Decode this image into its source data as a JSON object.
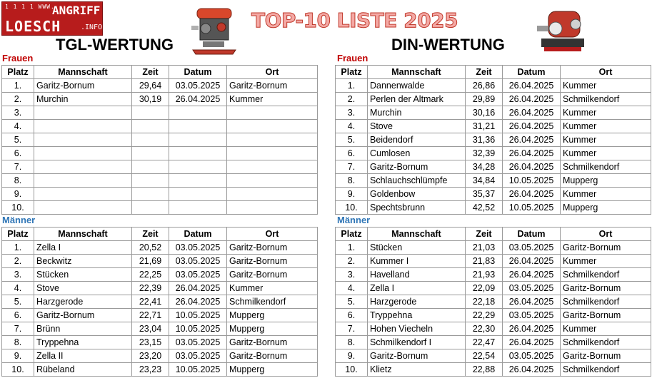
{
  "logo": {
    "top": "1 1 1 1  WWW.",
    "a": "ANGRIFF",
    "b": "LOESCH",
    "c": ".INFO"
  },
  "main_title": "TOP-10 LISTE 2025",
  "tgl": {
    "title": "TGL-WERTUNG",
    "headers": [
      "Platz",
      "Mannschaft",
      "Zeit",
      "Datum",
      "Ort"
    ],
    "frauen_label": "Frauen",
    "maenner_label": "Männer",
    "frauen": [
      [
        "1.",
        "Garitz-Bornum",
        "29,64",
        "03.05.2025",
        "Garitz-Bornum"
      ],
      [
        "2.",
        "Murchin",
        "30,19",
        "26.04.2025",
        "Kummer"
      ],
      [
        "3.",
        "",
        "",
        "",
        ""
      ],
      [
        "4.",
        "",
        "",
        "",
        ""
      ],
      [
        "5.",
        "",
        "",
        "",
        ""
      ],
      [
        "6.",
        "",
        "",
        "",
        ""
      ],
      [
        "7.",
        "",
        "",
        "",
        ""
      ],
      [
        "8.",
        "",
        "",
        "",
        ""
      ],
      [
        "9.",
        "",
        "",
        "",
        ""
      ],
      [
        "10.",
        "",
        "",
        "",
        ""
      ]
    ],
    "maenner": [
      [
        "1.",
        "Zella I",
        "20,52",
        "03.05.2025",
        "Garitz-Bornum"
      ],
      [
        "2.",
        "Beckwitz",
        "21,69",
        "03.05.2025",
        "Garitz-Bornum"
      ],
      [
        "3.",
        "Stücken",
        "22,25",
        "03.05.2025",
        "Garitz-Bornum"
      ],
      [
        "4.",
        "Stove",
        "22,39",
        "26.04.2025",
        "Kummer"
      ],
      [
        "5.",
        "Harzgerode",
        "22,41",
        "26.04.2025",
        "Schmilkendorf"
      ],
      [
        "6.",
        "Garitz-Bornum",
        "22,71",
        "10.05.2025",
        "Mupperg"
      ],
      [
        "7.",
        "Brünn",
        "23,04",
        "10.05.2025",
        "Mupperg"
      ],
      [
        "8.",
        "Tryppehna",
        "23,15",
        "03.05.2025",
        "Garitz-Bornum"
      ],
      [
        "9.",
        "Zella II",
        "23,20",
        "03.05.2025",
        "Garitz-Bornum"
      ],
      [
        "10.",
        "Rübeland",
        "23,23",
        "10.05.2025",
        "Mupperg"
      ]
    ]
  },
  "din": {
    "title": "DIN-WERTUNG",
    "headers": [
      "Platz",
      "Mannschaft",
      "Zeit",
      "Datum",
      "Ort"
    ],
    "frauen_label": "Frauen",
    "maenner_label": "Männer",
    "frauen": [
      [
        "1.",
        "Dannenwalde",
        "26,86",
        "26.04.2025",
        "Kummer"
      ],
      [
        "2.",
        "Perlen der Altmark",
        "29,89",
        "26.04.2025",
        "Schmilkendorf"
      ],
      [
        "3.",
        "Murchin",
        "30,16",
        "26.04.2025",
        "Kummer"
      ],
      [
        "4.",
        "Stove",
        "31,21",
        "26.04.2025",
        "Kummer"
      ],
      [
        "5.",
        "Beidendorf",
        "31,36",
        "26.04.2025",
        "Kummer"
      ],
      [
        "6.",
        "Cumlosen",
        "32,39",
        "26.04.2025",
        "Kummer"
      ],
      [
        "7.",
        "Garitz-Bornum",
        "34,28",
        "26.04.2025",
        "Schmilkendorf"
      ],
      [
        "8.",
        "Schlauchschlümpfe",
        "34,84",
        "10.05.2025",
        "Mupperg"
      ],
      [
        "9.",
        "Goldenbow",
        "35,37",
        "26.04.2025",
        "Kummer"
      ],
      [
        "10.",
        "Spechtsbrunn",
        "42,52",
        "10.05.2025",
        "Mupperg"
      ]
    ],
    "maenner": [
      [
        "1.",
        "Stücken",
        "21,03",
        "03.05.2025",
        "Garitz-Bornum"
      ],
      [
        "2.",
        "Kummer I",
        "21,83",
        "26.04.2025",
        "Kummer"
      ],
      [
        "3.",
        "Havelland",
        "21,93",
        "26.04.2025",
        "Schmilkendorf"
      ],
      [
        "4.",
        "Zella I",
        "22,09",
        "03.05.2025",
        "Garitz-Bornum"
      ],
      [
        "5.",
        "Harzgerode",
        "22,18",
        "26.04.2025",
        "Schmilkendorf"
      ],
      [
        "6.",
        "Tryppehna",
        "22,29",
        "03.05.2025",
        "Garitz-Bornum"
      ],
      [
        "7.",
        "Hohen Viecheln",
        "22,30",
        "26.04.2025",
        "Kummer"
      ],
      [
        "8.",
        "Schmilkendorf I",
        "22,47",
        "26.04.2025",
        "Schmilkendorf"
      ],
      [
        "9.",
        "Garitz-Bornum",
        "22,54",
        "03.05.2025",
        "Garitz-Bornum"
      ],
      [
        "10.",
        "Klietz",
        "22,88",
        "26.04.2025",
        "Schmilkendorf"
      ]
    ]
  }
}
